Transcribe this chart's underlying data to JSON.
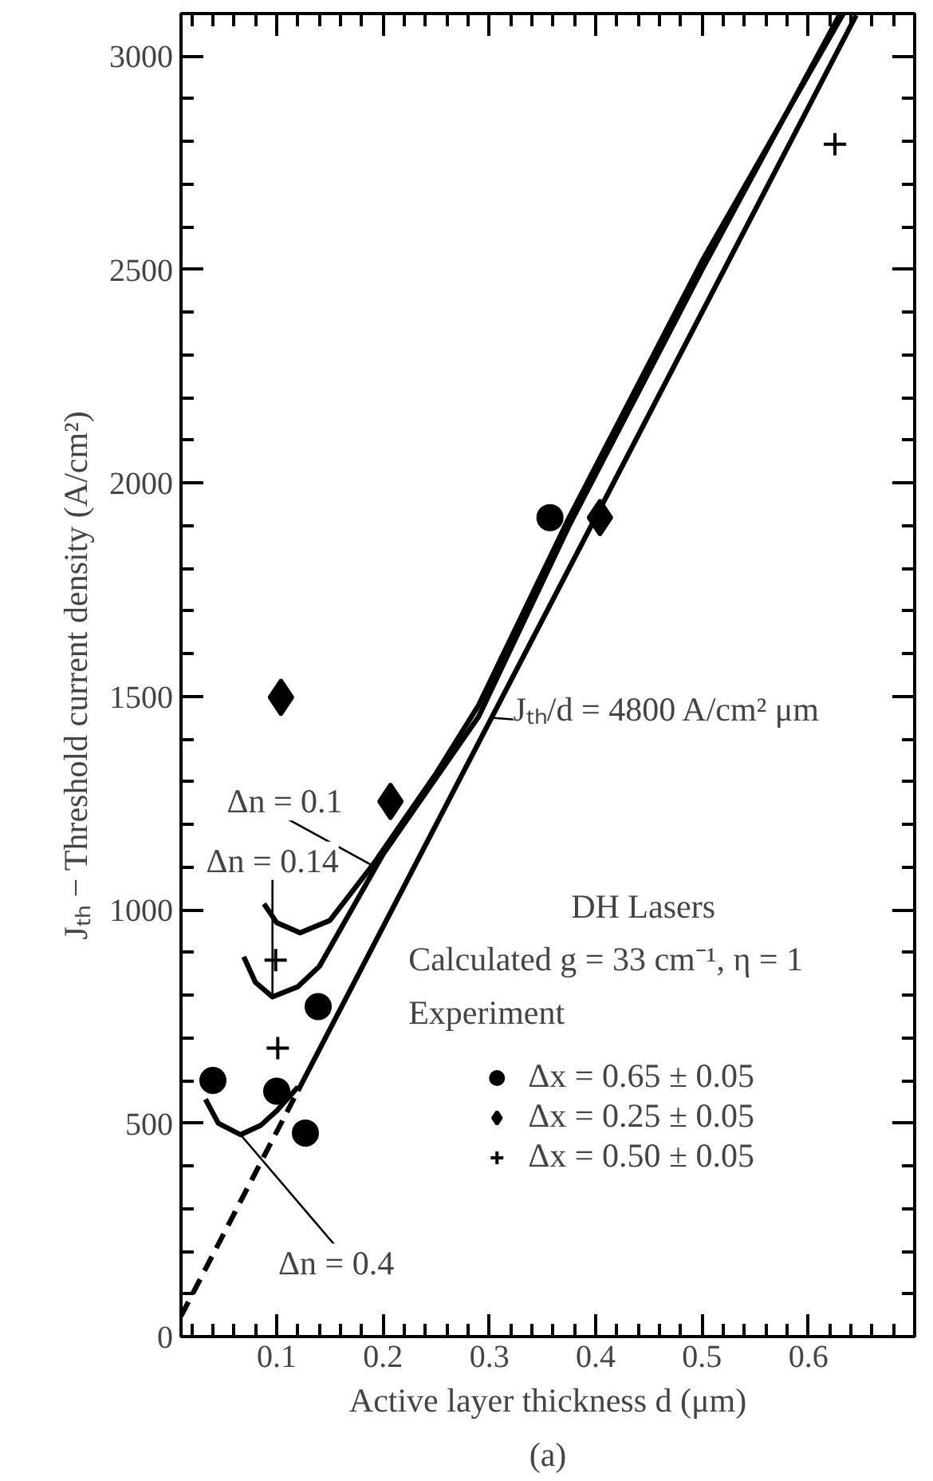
{
  "chart_data": {
    "type": "line",
    "xlabel": "Active layer thickness d (μm)",
    "ylabel": "Jₜₕ − Threshold current density (A/cm²)",
    "xlim": [
      0.01,
      0.7
    ],
    "ylim": [
      0,
      3100
    ],
    "xticks": [
      0.1,
      0.2,
      0.3,
      0.4,
      0.5,
      0.6
    ],
    "yticks": [
      0,
      500,
      1000,
      1500,
      2000,
      2500,
      3000
    ],
    "grid": false,
    "legend": "bottom right",
    "series": [
      {
        "color": "#000000",
        "line_style": "dashed",
        "x": [
          0.01,
          0.12
        ],
        "values": [
          48,
          576
        ]
      },
      {
        "color": "#000000",
        "line_style": "solid",
        "x": [
          0.12,
          0.645
        ],
        "values": [
          576,
          3096
        ]
      },
      {
        "color": "#000000",
        "line_style": "solid",
        "x": [
          0.088,
          0.1,
          0.122,
          0.15,
          0.19,
          0.25,
          0.29,
          0.375,
          0.5,
          0.633
        ],
        "values": [
          1014,
          970,
          946,
          975,
          1104,
          1320,
          1480,
          1919,
          2520,
          3100
        ]
      },
      {
        "color": "#000000",
        "line_style": "solid",
        "x": [
          0.069,
          0.08,
          0.096,
          0.12,
          0.14,
          0.2,
          0.29,
          0.375,
          0.5,
          0.63
        ],
        "values": [
          890,
          830,
          796,
          820,
          867,
          1130,
          1453,
          1900,
          2500,
          3100
        ]
      },
      {
        "color": "#000000",
        "line_style": "solid",
        "x": [
          0.033,
          0.045,
          0.066,
          0.085,
          0.1,
          0.12
        ],
        "values": [
          556,
          500,
          473,
          495,
          529,
          585
        ]
      },
      {
        "type": "scatter",
        "name": "Δx = 0.65 ± 0.05",
        "color": "#000000",
        "marker": "circle",
        "x": [
          0.04,
          0.1,
          0.127,
          0.139,
          0.357
        ],
        "values": [
          600,
          575,
          477,
          773,
          1919
        ]
      },
      {
        "type": "scatter",
        "name": "Δx = 0.25 ± 0.05",
        "color": "#000000",
        "marker": "diamond",
        "x": [
          0.104,
          0.207,
          0.404
        ],
        "values": [
          1498,
          1254,
          1919
        ]
      },
      {
        "type": "scatter",
        "name": "Δx = 0.50 ± 0.05",
        "color": "#000000",
        "marker": "cross",
        "x": [
          0.099,
          0.101,
          0.625
        ],
        "values": [
          882,
          676,
          2794
        ]
      }
    ],
    "annotations": [
      {
        "text": "Δn = 0.1",
        "x": 0.19,
        "y": 1104
      },
      {
        "text": "Δn = 0.14",
        "x": 0.096,
        "y": 796
      },
      {
        "text": "Δn = 0.4",
        "x": 0.066,
        "y": 473
      },
      {
        "text": "Jₜₕ/d = 4800 A/cm² μm",
        "x": 0.302,
        "y": 1450
      },
      "DH Lasers",
      "Calculated g = 33 cm⁻¹, η = 1",
      "Experiment",
      "(a)"
    ]
  }
}
